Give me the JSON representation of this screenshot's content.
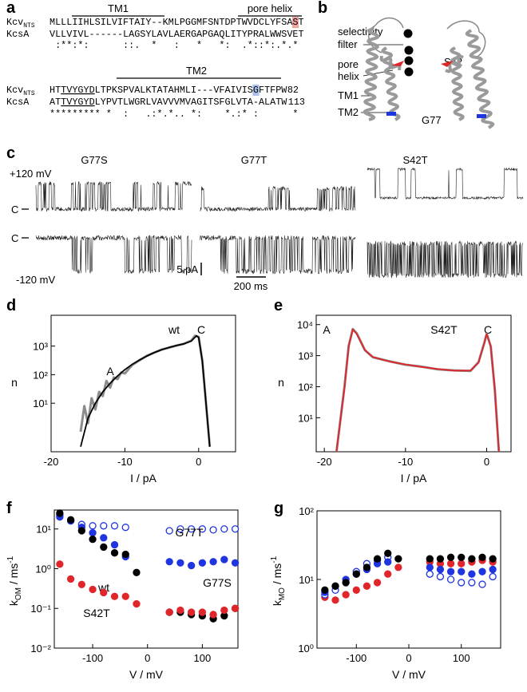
{
  "alignment": {
    "panel_label": "a",
    "tm1": "TM1",
    "pore_helix": "pore helix",
    "tm2": "TM2",
    "block1": {
      "rows": [
        {
          "name": "Kcv",
          "name_sub": "NTS",
          "seq": [
            "MLLLIIHLSILVIFTAIY--KMLPGGMFSNTDPTWVDCLYFSA",
            "S",
            "T"
          ]
        },
        {
          "name": "KcsA",
          "seq": [
            "VLLVIVL------LAGSYLAVLAERGAPGAQLITYPRALWWSVET"
          ]
        }
      ],
      "conservation": " :**:*:      ::.  *   :   *   *:  .*::*:.*.*"
    },
    "block2": {
      "rows": [
        {
          "name": "Kcv",
          "name_sub": "NTS",
          "seq": [
            "HT",
            "TVYGYD",
            "LTPKSPVALKTATAHMLI---VFAIVIS",
            "G",
            "FTFPW"
          ],
          "end": 82
        },
        {
          "name": "KcsA",
          "seq": [
            "AT",
            "TVYGYD",
            "LYPVTLWGRLVAVVVMVAGITSFGLVTA-ALATW"
          ],
          "end": 113
        }
      ],
      "conservation": "********* *  :   .:*.*.. *:    *.:* :      *"
    }
  },
  "structure": {
    "panel_label": "b",
    "selectivity_filter": [
      "selectivity",
      "filter"
    ],
    "pore_helix": [
      "pore",
      "helix"
    ],
    "tm1": "TM1",
    "tm2": "TM2",
    "s42": "S42",
    "g77": "G77"
  },
  "traces": {
    "panel_label": "c",
    "mutants": [
      "G77S",
      "G77T",
      "S42T"
    ],
    "voltages": [
      "+120 mV",
      "-120 mV"
    ],
    "closed_label": "C",
    "scale": {
      "current": "5 pA",
      "time": "200 ms"
    }
  },
  "chart_data": [
    {
      "type": "line",
      "panel_label": "d",
      "xlabel": "I / pA",
      "ylabel": "n",
      "xlim": [
        -20,
        5
      ],
      "xticks": [
        -20,
        -10,
        0
      ],
      "ylim": [
        0.2,
        12000
      ],
      "ylog": true,
      "yticks": [
        {
          "value": 10,
          "label": "10¹"
        },
        {
          "value": 100,
          "label": "10²"
        },
        {
          "value": 1000,
          "label": "10³"
        }
      ],
      "annotations": [
        "wt",
        "C",
        "A"
      ],
      "series": [
        {
          "color": "#8c8c8c",
          "width": 3,
          "x": [
            -16,
            -15.5,
            -15,
            -14.5,
            -14,
            -13.5,
            -13,
            -12.5,
            -12,
            -11.5,
            -11,
            -10.5,
            -10,
            -9,
            -8,
            -7,
            -6,
            -5,
            -4,
            -3,
            -2,
            -1,
            -0.5,
            0,
            0.5,
            1,
            1.5
          ],
          "values": [
            1,
            8,
            2,
            15,
            6,
            25,
            18,
            60,
            35,
            80,
            70,
            120,
            110,
            220,
            320,
            460,
            590,
            760,
            880,
            1050,
            1200,
            1550,
            2300,
            2100,
            300,
            10,
            0.3
          ]
        },
        {
          "color": "#000000",
          "width": 1.8,
          "x": [
            -16,
            -15,
            -14,
            -13,
            -12,
            -11,
            -10,
            -9,
            -8,
            -7,
            -6,
            -5,
            -4,
            -3,
            -2,
            -1,
            -0.3,
            0,
            0.5,
            1,
            1.5
          ],
          "values": [
            0.3,
            3,
            10,
            25,
            50,
            90,
            150,
            230,
            330,
            450,
            600,
            750,
            900,
            1050,
            1200,
            1500,
            2300,
            2000,
            300,
            10,
            0.3
          ]
        }
      ]
    },
    {
      "type": "line",
      "panel_label": "e",
      "xlabel": "I / pA",
      "ylabel": "n",
      "xlim": [
        -21,
        3
      ],
      "xticks": [
        -20,
        -10,
        0
      ],
      "ylim": [
        0.8,
        20000
      ],
      "ylog": true,
      "yticks": [
        {
          "value": 10,
          "label": "10¹"
        },
        {
          "value": 100,
          "label": "10²"
        },
        {
          "value": 1000,
          "label": "10³"
        },
        {
          "value": 10000,
          "label": "10⁴"
        }
      ],
      "annotations": [
        "A",
        "S42T",
        "C"
      ],
      "series": [
        {
          "color": "#8c8c8c",
          "width": 3,
          "x": [
            -18.5,
            -17.5,
            -17,
            -16.5,
            -16,
            -15,
            -14,
            -12,
            -10,
            -8,
            -6,
            -4,
            -2,
            -1,
            -0.3,
            0,
            0.5,
            1,
            1.5
          ],
          "values": [
            0.8,
            110,
            2100,
            7200,
            5200,
            1500,
            880,
            660,
            510,
            440,
            360,
            335,
            320,
            620,
            2600,
            5100,
            2000,
            80,
            0.8
          ]
        },
        {
          "color": "#e0262a",
          "width": 1.8,
          "x": [
            -18.5,
            -17.5,
            -17,
            -16.5,
            -16,
            -15,
            -14,
            -12,
            -10,
            -8,
            -6,
            -4,
            -2,
            -1,
            -0.3,
            0,
            0.5,
            1,
            1.5
          ],
          "values": [
            0.8,
            100,
            2000,
            7000,
            5000,
            1500,
            900,
            650,
            520,
            430,
            370,
            330,
            330,
            600,
            2500,
            5000,
            2000,
            80,
            0.8
          ]
        }
      ]
    },
    {
      "type": "scatter",
      "panel_label": "f",
      "xlabel": "V / mV",
      "ylabel": [
        "k",
        "OM",
        " / ms",
        "-1"
      ],
      "xlim": [
        -170,
        165
      ],
      "xticks": [
        -100,
        0,
        100
      ],
      "ylim": [
        0.01,
        30
      ],
      "ylog": true,
      "yticks": [
        {
          "value": 0.01,
          "label": "10⁻²"
        },
        {
          "value": 0.1,
          "label": "10⁻¹"
        },
        {
          "value": 1,
          "label": "10⁰"
        },
        {
          "value": 10,
          "label": "10¹"
        }
      ],
      "x": [
        -160,
        -140,
        -120,
        -100,
        -80,
        -60,
        -40,
        -20,
        40,
        60,
        80,
        100,
        120,
        140,
        160
      ],
      "series": [
        {
          "name": "G77T",
          "color": "#1f35e0",
          "filled": false,
          "values": [
            22,
            16,
            13,
            12,
            12,
            12,
            11,
            null,
            9,
            10,
            10,
            10,
            9.5,
            10,
            10
          ]
        },
        {
          "name": "G77S",
          "color": "#1f35e0",
          "filled": true,
          "values": [
            20,
            16,
            11,
            8,
            6,
            4,
            2,
            null,
            1.5,
            1.4,
            1.2,
            1.4,
            1.5,
            1.7,
            1.4
          ]
        },
        {
          "name": "wt",
          "color": "#000000",
          "filled": true,
          "values": [
            25,
            17,
            9,
            5.5,
            3.5,
            2.5,
            2.3,
            0.8,
            0.08,
            0.08,
            0.07,
            0.065,
            0.055,
            0.065,
            0.1
          ]
        },
        {
          "name": "S42T",
          "color": "#e0262a",
          "filled": true,
          "values": [
            1.3,
            0.55,
            0.4,
            0.3,
            0.25,
            0.2,
            0.2,
            0.13,
            0.08,
            0.09,
            0.08,
            0.08,
            0.07,
            0.09,
            0.1
          ]
        }
      ]
    },
    {
      "type": "scatter",
      "panel_label": "g",
      "xlabel": "V / mV",
      "ylabel": [
        "k",
        "MO",
        " / ms",
        "-1"
      ],
      "xlim": [
        -175,
        175
      ],
      "xticks": [
        -100,
        0,
        100
      ],
      "ylim": [
        1,
        100
      ],
      "ylog": true,
      "yticks": [
        {
          "value": 1,
          "label": "10⁰"
        },
        {
          "value": 10,
          "label": "10¹"
        },
        {
          "value": 100,
          "label": "10²"
        }
      ],
      "x": [
        -160,
        -140,
        -120,
        -100,
        -80,
        -60,
        -40,
        -20,
        40,
        60,
        80,
        100,
        120,
        140,
        160
      ],
      "series": [
        {
          "color": "#e0262a",
          "filled": true,
          "values": [
            5.5,
            5,
            6,
            7,
            8,
            9,
            12,
            15,
            18,
            17,
            17,
            17,
            18,
            19,
            18
          ]
        },
        {
          "color": "#1f35e0",
          "filled": false,
          "values": [
            6,
            7,
            9,
            13,
            17,
            19,
            21,
            null,
            12,
            11,
            10,
            9,
            9,
            8.5,
            11
          ]
        },
        {
          "color": "#1f35e0",
          "filled": true,
          "values": [
            6.5,
            8,
            10,
            12,
            14,
            17,
            18,
            null,
            15,
            14,
            13,
            13,
            12,
            13,
            14
          ]
        },
        {
          "color": "#000000",
          "filled": true,
          "values": [
            7,
            8,
            9,
            12,
            15,
            20,
            24,
            20,
            20,
            20,
            21,
            21,
            20,
            21,
            20
          ]
        }
      ]
    }
  ]
}
